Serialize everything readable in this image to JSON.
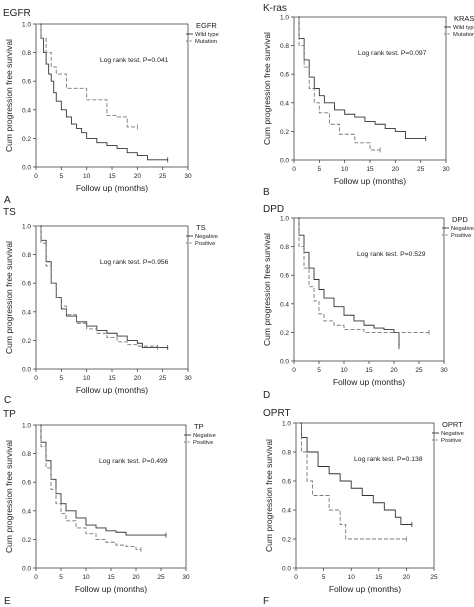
{
  "chart_data": [
    {
      "type": "line",
      "panel_letter": "A",
      "title": "EGFR",
      "xlabel": "Follow up (months)",
      "ylabel": "Cum progression free survival",
      "xlim": [
        0,
        30
      ],
      "ylim": [
        0,
        1.0
      ],
      "xticks": [
        0,
        5,
        10,
        15,
        20,
        25,
        30
      ],
      "yticks": [
        0.0,
        0.2,
        0.4,
        0.6,
        0.8,
        1.0
      ],
      "grid": false,
      "legend_position": "top-right",
      "legend_title": "EGFR",
      "annotation": "Log rank test. P=0.041",
      "series": [
        {
          "name": "Wild type",
          "style": "solid",
          "color": "#333333",
          "x": [
            0,
            1,
            1.5,
            2,
            2.5,
            3,
            3.5,
            4,
            5,
            6,
            7,
            8,
            9,
            10,
            12,
            14,
            16,
            18,
            20,
            22,
            26
          ],
          "y": [
            1.0,
            0.9,
            0.8,
            0.72,
            0.65,
            0.6,
            0.52,
            0.46,
            0.4,
            0.35,
            0.3,
            0.27,
            0.24,
            0.2,
            0.17,
            0.15,
            0.13,
            0.1,
            0.08,
            0.05,
            0.05
          ]
        },
        {
          "name": "Mutation",
          "style": "dashed",
          "color": "#777777",
          "x": [
            0,
            1,
            2,
            3,
            4,
            6,
            10,
            14,
            16,
            18,
            20
          ],
          "y": [
            1.0,
            0.9,
            0.8,
            0.7,
            0.65,
            0.55,
            0.47,
            0.36,
            0.35,
            0.28,
            0.28
          ]
        }
      ]
    },
    {
      "type": "line",
      "panel_letter": "B",
      "title": "K-ras",
      "xlabel": "Follow up (months)",
      "ylabel": "Cum progression free survival",
      "xlim": [
        0,
        30
      ],
      "ylim": [
        0,
        1.0
      ],
      "xticks": [
        0,
        5,
        10,
        15,
        20,
        25,
        30
      ],
      "yticks": [
        0.0,
        0.2,
        0.4,
        0.6,
        0.8,
        1.0
      ],
      "grid": false,
      "legend_position": "top-right",
      "legend_title": "KRAS",
      "annotation": "Log rank test. P=0.097",
      "series": [
        {
          "name": "Wild type",
          "style": "solid",
          "color": "#333333",
          "x": [
            0,
            1,
            2,
            3,
            4,
            5,
            6,
            8,
            10,
            12,
            14,
            16,
            18,
            20,
            22,
            26
          ],
          "y": [
            1.0,
            0.85,
            0.7,
            0.58,
            0.5,
            0.45,
            0.4,
            0.35,
            0.32,
            0.3,
            0.27,
            0.25,
            0.22,
            0.2,
            0.15,
            0.15
          ]
        },
        {
          "name": "Mutation",
          "style": "dashed",
          "color": "#777777",
          "x": [
            0,
            1,
            2,
            3,
            4,
            5,
            7,
            9,
            12,
            15,
            17
          ],
          "y": [
            1.0,
            0.8,
            0.65,
            0.5,
            0.4,
            0.33,
            0.25,
            0.18,
            0.12,
            0.07,
            0.07
          ]
        }
      ]
    },
    {
      "type": "line",
      "panel_letter": "C",
      "title": "TS",
      "xlabel": "Follow up (months)",
      "ylabel": "Cum progression free survival",
      "xlim": [
        0,
        30
      ],
      "ylim": [
        0,
        1.0
      ],
      "xticks": [
        0,
        5,
        10,
        15,
        20,
        25,
        30
      ],
      "yticks": [
        0.0,
        0.2,
        0.4,
        0.6,
        0.8,
        1.0
      ],
      "grid": false,
      "legend_position": "top-right",
      "legend_title": "TS",
      "annotation": "Log rank test. P=0.956",
      "series": [
        {
          "name": "Negative",
          "style": "solid",
          "color": "#333333",
          "x": [
            0,
            1,
            2,
            3,
            4,
            5,
            6,
            8,
            10,
            12,
            14,
            16,
            18,
            20,
            21,
            26
          ],
          "y": [
            1.0,
            0.9,
            0.75,
            0.6,
            0.5,
            0.42,
            0.37,
            0.33,
            0.3,
            0.27,
            0.25,
            0.23,
            0.2,
            0.18,
            0.15,
            0.15
          ]
        },
        {
          "name": "Positive",
          "style": "dashed",
          "color": "#777777",
          "x": [
            0,
            1,
            2,
            3,
            4,
            5,
            6,
            8,
            10,
            12,
            14,
            16,
            18,
            20,
            24
          ],
          "y": [
            1.0,
            0.88,
            0.72,
            0.6,
            0.5,
            0.44,
            0.38,
            0.32,
            0.28,
            0.25,
            0.22,
            0.19,
            0.17,
            0.16,
            0.15
          ]
        }
      ]
    },
    {
      "type": "line",
      "panel_letter": "D",
      "title": "DPD",
      "xlabel": "Follow up (months)",
      "ylabel": "Cum progression free survival",
      "xlim": [
        0,
        30
      ],
      "ylim": [
        0,
        1.0
      ],
      "xticks": [
        0,
        5,
        10,
        15,
        20,
        25,
        30
      ],
      "yticks": [
        0.0,
        0.2,
        0.4,
        0.6,
        0.8,
        1.0
      ],
      "grid": false,
      "legend_position": "top-right",
      "legend_title": "DPD",
      "annotation": "Log rank test. P=0.529",
      "series": [
        {
          "name": "Negative",
          "style": "solid",
          "color": "#333333",
          "x": [
            0,
            1,
            2,
            3,
            4,
            5,
            6,
            8,
            10,
            12,
            14,
            16,
            18,
            20,
            21
          ],
          "y": [
            1.0,
            0.88,
            0.76,
            0.65,
            0.57,
            0.5,
            0.44,
            0.38,
            0.32,
            0.28,
            0.25,
            0.23,
            0.22,
            0.2,
            0.1
          ]
        },
        {
          "name": "Positive",
          "style": "dashed",
          "color": "#777777",
          "x": [
            0,
            1,
            2,
            3,
            4,
            5,
            6,
            8,
            10,
            14,
            27
          ],
          "y": [
            1.0,
            0.8,
            0.65,
            0.52,
            0.42,
            0.33,
            0.28,
            0.25,
            0.22,
            0.2,
            0.2
          ]
        }
      ]
    },
    {
      "type": "line",
      "panel_letter": "E",
      "title": "TP",
      "xlabel": "Follow up (months)",
      "ylabel": "Cum progression free survival",
      "xlim": [
        0,
        30
      ],
      "ylim": [
        0,
        1.0
      ],
      "xticks": [
        0,
        5,
        10,
        15,
        20,
        25,
        30
      ],
      "yticks": [
        0.0,
        0.2,
        0.4,
        0.6,
        0.8,
        1.0
      ],
      "grid": false,
      "legend_position": "top-right",
      "legend_title": "TP",
      "annotation": "Log rank test. P=0.499",
      "series": [
        {
          "name": "Negative",
          "style": "solid",
          "color": "#333333",
          "x": [
            0,
            1,
            2,
            3,
            4,
            5,
            6,
            8,
            10,
            12,
            14,
            16,
            18,
            26
          ],
          "y": [
            1.0,
            0.88,
            0.75,
            0.62,
            0.52,
            0.45,
            0.4,
            0.35,
            0.3,
            0.28,
            0.26,
            0.25,
            0.23,
            0.23
          ]
        },
        {
          "name": "Positive",
          "style": "dashed",
          "color": "#777777",
          "x": [
            0,
            1,
            2,
            3,
            4,
            5,
            6,
            8,
            10,
            12,
            14,
            16,
            18,
            20,
            21
          ],
          "y": [
            1.0,
            0.85,
            0.7,
            0.55,
            0.45,
            0.38,
            0.33,
            0.28,
            0.24,
            0.2,
            0.18,
            0.16,
            0.15,
            0.13,
            0.13
          ]
        }
      ]
    },
    {
      "type": "line",
      "panel_letter": "F",
      "title": "OPRT",
      "xlabel": "Follow up (months)",
      "ylabel": "Cum progression free survival",
      "xlim": [
        0,
        25
      ],
      "ylim": [
        0,
        1.0
      ],
      "xticks": [
        0,
        5,
        10,
        15,
        20,
        25
      ],
      "yticks": [
        0.0,
        0.2,
        0.4,
        0.6,
        0.8,
        1.0
      ],
      "grid": false,
      "legend_position": "top-right",
      "legend_title": "OPRT",
      "annotation": "Log rank test. P=0.138",
      "series": [
        {
          "name": "Negative",
          "style": "solid",
          "color": "#333333",
          "x": [
            0,
            1,
            2,
            4,
            6,
            8,
            10,
            12,
            14,
            16,
            18,
            19,
            21
          ],
          "y": [
            1.0,
            0.9,
            0.8,
            0.7,
            0.65,
            0.6,
            0.55,
            0.5,
            0.45,
            0.4,
            0.35,
            0.3,
            0.3
          ]
        },
        {
          "name": "Positive",
          "style": "dashed",
          "color": "#777777",
          "x": [
            0,
            1,
            2,
            3,
            6,
            8,
            9,
            20
          ],
          "y": [
            1.0,
            0.8,
            0.6,
            0.5,
            0.4,
            0.3,
            0.2,
            0.2
          ]
        }
      ]
    }
  ]
}
